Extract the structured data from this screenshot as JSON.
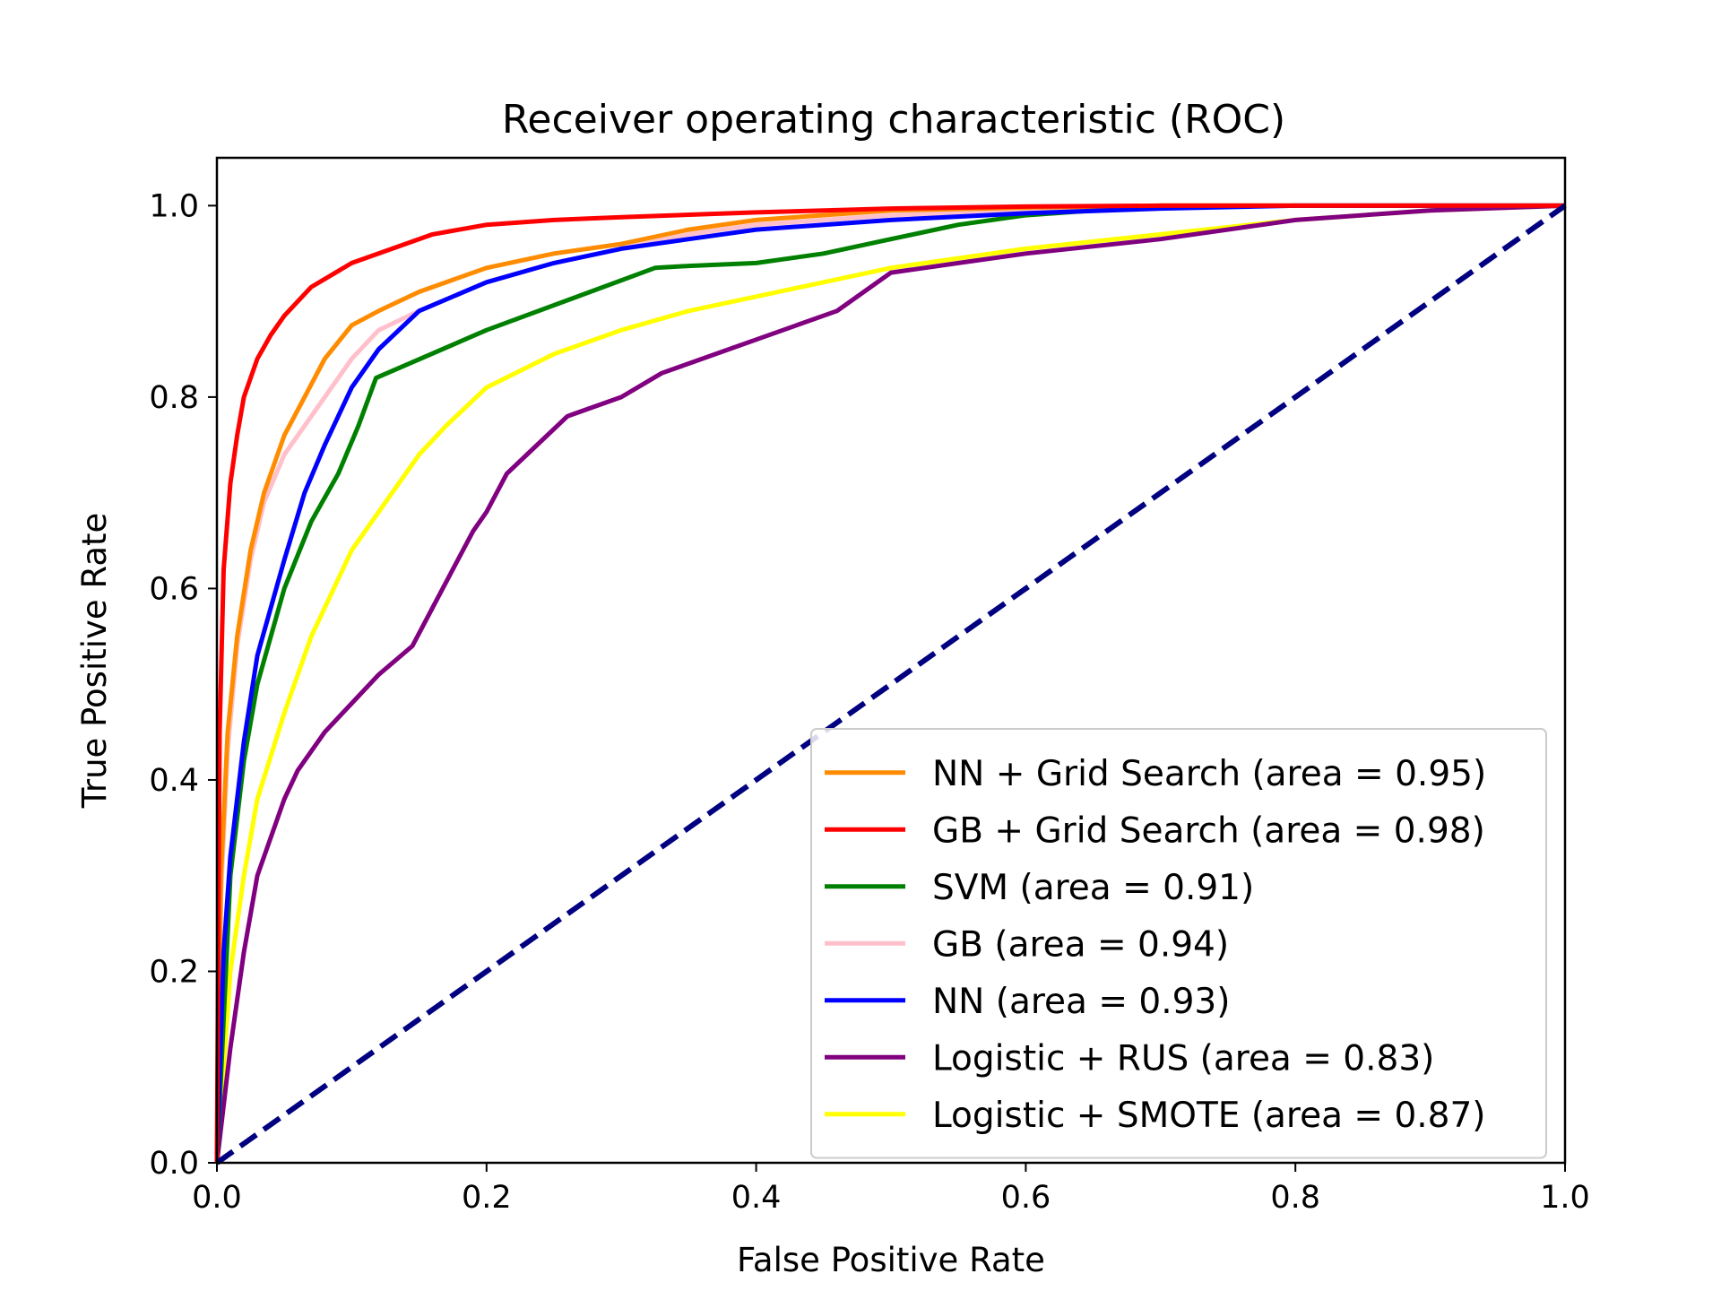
{
  "chart_data": {
    "type": "line",
    "title": "Receiver operating characteristic (ROC)",
    "xlabel": "False Positive Rate",
    "ylabel": "True Positive Rate",
    "xlim": [
      0.0,
      1.0
    ],
    "ylim": [
      0.0,
      1.05
    ],
    "xticks": [
      "0.0",
      "0.2",
      "0.4",
      "0.6",
      "0.8",
      "1.0"
    ],
    "yticks": [
      "0.0",
      "0.2",
      "0.4",
      "0.6",
      "0.8",
      "1.0"
    ],
    "grid": false,
    "legend_position": "lower-right",
    "series": [
      {
        "name": "NN + Grid Search (area = 0.95)",
        "color": "#ff8c00",
        "x": [
          0,
          0.003,
          0.008,
          0.015,
          0.025,
          0.035,
          0.05,
          0.065,
          0.08,
          0.1,
          0.12,
          0.15,
          0.2,
          0.25,
          0.3,
          0.35,
          0.4,
          0.5,
          0.6,
          0.7,
          0.8,
          1.0
        ],
        "y": [
          0,
          0.3,
          0.45,
          0.55,
          0.64,
          0.7,
          0.76,
          0.8,
          0.84,
          0.875,
          0.89,
          0.91,
          0.935,
          0.95,
          0.96,
          0.975,
          0.985,
          0.995,
          0.998,
          1.0,
          1.0,
          1.0
        ]
      },
      {
        "name": "GB + Grid Search (area = 0.98)",
        "color": "#ff0000",
        "x": [
          0,
          0.002,
          0.005,
          0.01,
          0.015,
          0.02,
          0.03,
          0.04,
          0.05,
          0.07,
          0.1,
          0.13,
          0.16,
          0.2,
          0.25,
          0.3,
          0.4,
          0.5,
          0.6,
          0.7,
          0.8,
          1.0
        ],
        "y": [
          0,
          0.45,
          0.62,
          0.71,
          0.76,
          0.8,
          0.84,
          0.865,
          0.885,
          0.915,
          0.94,
          0.955,
          0.97,
          0.98,
          0.985,
          0.988,
          0.993,
          0.997,
          0.999,
          1.0,
          1.0,
          1.0
        ]
      },
      {
        "name": "SVM (area = 0.91)",
        "color": "#008000",
        "x": [
          0,
          0.01,
          0.02,
          0.03,
          0.05,
          0.07,
          0.09,
          0.105,
          0.118,
          0.2,
          0.325,
          0.35,
          0.4,
          0.45,
          0.5,
          0.55,
          0.6,
          0.65,
          0.7,
          0.8,
          1.0
        ],
        "y": [
          0,
          0.3,
          0.42,
          0.5,
          0.6,
          0.67,
          0.72,
          0.77,
          0.82,
          0.87,
          0.935,
          0.937,
          0.94,
          0.95,
          0.965,
          0.98,
          0.99,
          0.995,
          1.0,
          1.0,
          1.0
        ]
      },
      {
        "name": "GB (area = 0.94)",
        "color": "#ffc0cb",
        "x": [
          0,
          0.003,
          0.008,
          0.015,
          0.025,
          0.035,
          0.05,
          0.07,
          0.09,
          0.1,
          0.12,
          0.15,
          0.2,
          0.25,
          0.3,
          0.35,
          0.4,
          0.5,
          0.6,
          0.7,
          0.8,
          1.0
        ],
        "y": [
          0,
          0.28,
          0.43,
          0.54,
          0.63,
          0.69,
          0.74,
          0.78,
          0.82,
          0.84,
          0.87,
          0.89,
          0.92,
          0.94,
          0.955,
          0.97,
          0.98,
          0.99,
          0.995,
          1.0,
          1.0,
          1.0
        ]
      },
      {
        "name": "NN (area = 0.93)",
        "color": "#0000ff",
        "x": [
          0,
          0.005,
          0.01,
          0.02,
          0.03,
          0.05,
          0.065,
          0.08,
          0.1,
          0.12,
          0.15,
          0.2,
          0.25,
          0.3,
          0.35,
          0.4,
          0.5,
          0.6,
          0.7,
          0.8,
          0.9,
          1.0
        ],
        "y": [
          0,
          0.22,
          0.32,
          0.44,
          0.53,
          0.63,
          0.7,
          0.75,
          0.81,
          0.85,
          0.89,
          0.92,
          0.94,
          0.955,
          0.965,
          0.975,
          0.985,
          0.992,
          0.997,
          1.0,
          1.0,
          1.0
        ]
      },
      {
        "name": "Logistic + RUS (area = 0.83)",
        "color": "#800080",
        "x": [
          0,
          0.01,
          0.02,
          0.03,
          0.05,
          0.06,
          0.08,
          0.1,
          0.12,
          0.145,
          0.16,
          0.175,
          0.19,
          0.2,
          0.215,
          0.23,
          0.26,
          0.3,
          0.33,
          0.35,
          0.4,
          0.43,
          0.46,
          0.5,
          0.55,
          0.6,
          0.7,
          0.8,
          0.9,
          1.0
        ],
        "y": [
          0,
          0.12,
          0.22,
          0.3,
          0.38,
          0.41,
          0.45,
          0.48,
          0.51,
          0.54,
          0.58,
          0.62,
          0.66,
          0.68,
          0.72,
          0.74,
          0.78,
          0.8,
          0.825,
          0.835,
          0.86,
          0.875,
          0.89,
          0.93,
          0.94,
          0.95,
          0.965,
          0.985,
          0.995,
          1.0
        ]
      },
      {
        "name": "Logistic + SMOTE (area = 0.87)",
        "color": "#ffff00",
        "x": [
          0,
          0.01,
          0.02,
          0.03,
          0.05,
          0.07,
          0.1,
          0.13,
          0.15,
          0.17,
          0.2,
          0.25,
          0.3,
          0.35,
          0.4,
          0.45,
          0.5,
          0.6,
          0.7,
          0.8,
          0.9,
          1.0
        ],
        "y": [
          0,
          0.2,
          0.3,
          0.38,
          0.47,
          0.55,
          0.64,
          0.7,
          0.74,
          0.77,
          0.81,
          0.845,
          0.87,
          0.89,
          0.905,
          0.92,
          0.935,
          0.955,
          0.97,
          0.985,
          0.995,
          1.0
        ]
      },
      {
        "name": "",
        "color": "#000080",
        "dashed": true,
        "x": [
          0,
          1
        ],
        "y": [
          0,
          1
        ]
      }
    ]
  }
}
